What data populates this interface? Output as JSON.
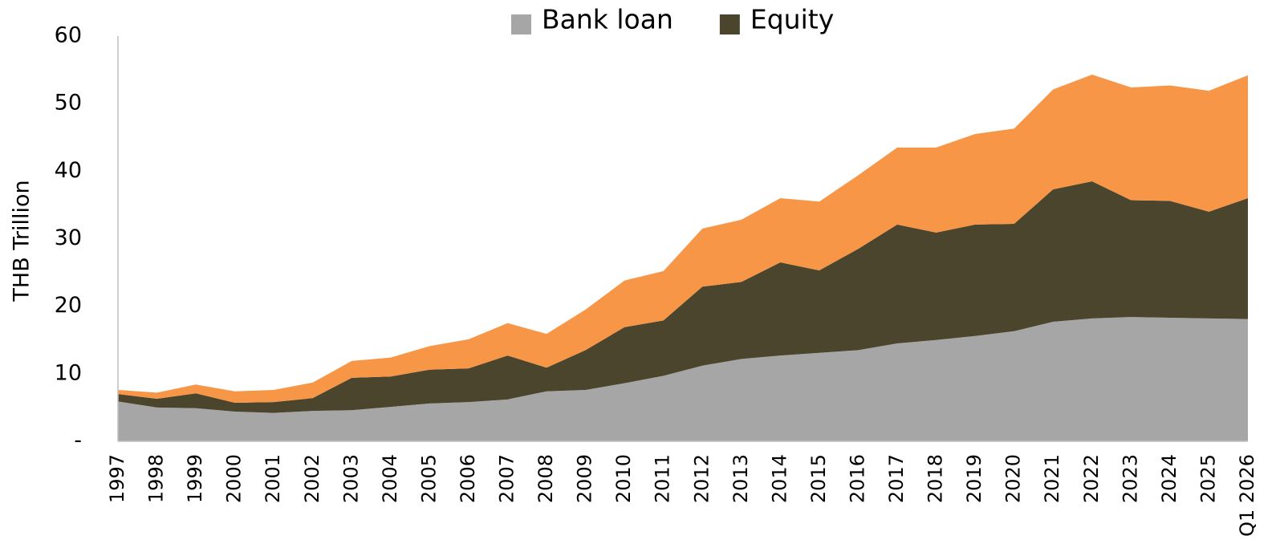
{
  "chart_data": {
    "type": "stacked_area",
    "y_label": "THB Trillion",
    "categories": [
      "1997",
      "1998",
      "1999",
      "2000",
      "2001",
      "2002",
      "2003",
      "2004",
      "2005",
      "2006",
      "2007",
      "2008",
      "2009",
      "2010",
      "2011",
      "2012",
      "2013",
      "2014",
      "2015",
      "2016",
      "2017",
      "2018",
      "2019",
      "2020",
      "2021",
      "2022",
      "2023",
      "2024",
      "2025",
      "Q1 2026"
    ],
    "series": [
      {
        "name": "Bank loan",
        "color": "#a6a6a6",
        "values": [
          5.9,
          5.0,
          4.9,
          4.4,
          4.2,
          4.5,
          4.6,
          5.1,
          5.6,
          5.8,
          6.2,
          7.4,
          7.6,
          8.6,
          9.7,
          11.2,
          12.2,
          12.7,
          13.1,
          13.5,
          14.5,
          15.0,
          15.6,
          16.3,
          17.7,
          18.2,
          18.4,
          18.3,
          18.2,
          18.1
        ]
      },
      {
        "name": "Equity",
        "color": "#4b452d",
        "values": [
          1.1,
          1.3,
          2.2,
          1.3,
          1.6,
          1.9,
          4.8,
          4.5,
          5.0,
          5.0,
          6.5,
          3.5,
          5.9,
          8.3,
          8.2,
          11.7,
          11.4,
          13.8,
          12.2,
          15.0,
          17.6,
          15.9,
          16.5,
          15.9,
          19.6,
          20.3,
          17.3,
          17.3,
          15.8,
          17.9
        ]
      },
      {
        "color": "#f79646",
        "values": [
          0.6,
          0.9,
          1.3,
          1.7,
          1.8,
          2.3,
          2.5,
          2.8,
          3.5,
          4.3,
          4.8,
          5.0,
          6.0,
          6.9,
          7.3,
          8.6,
          9.2,
          9.5,
          10.2,
          10.9,
          11.4,
          12.6,
          13.4,
          14.1,
          14.8,
          15.8,
          16.7,
          17.1,
          17.9,
          18.2
        ]
      }
    ],
    "ylim": [
      0,
      60
    ],
    "yticks": [
      {
        "value": 0,
        "label": "-"
      },
      10,
      20,
      30,
      40,
      50,
      60
    ],
    "legend": "top"
  }
}
